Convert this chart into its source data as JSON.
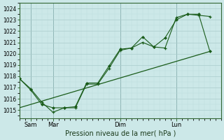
{
  "title": "Pression niveau de la mer( hPa )",
  "ylabel_vals": [
    1015,
    1016,
    1017,
    1018,
    1019,
    1020,
    1021,
    1022,
    1023,
    1024
  ],
  "ylim": [
    1014.3,
    1024.5
  ],
  "xlim": [
    0.0,
    9.0
  ],
  "xtick_positions": [
    0.5,
    1.5,
    4.5,
    7.0
  ],
  "xtick_labels": [
    "Sam",
    "Mar",
    "Dim",
    "Lun"
  ],
  "vline_positions": [
    0.5,
    1.5,
    4.5,
    7.0
  ],
  "background_color": "#cce8e8",
  "grid_color_major": "#aacccc",
  "grid_color_minor": "#bbdddd",
  "line_color": "#1a5c1a",
  "series1_x": [
    0.0,
    0.5,
    1.0,
    1.5,
    2.0,
    2.5,
    3.0,
    3.5,
    4.0,
    4.5,
    5.0,
    5.5,
    6.0,
    6.5,
    7.0,
    7.5,
    8.0,
    8.5
  ],
  "series1_y": [
    1017.8,
    1016.9,
    1015.7,
    1014.8,
    1015.2,
    1015.2,
    1017.3,
    1017.3,
    1018.7,
    1020.3,
    1020.5,
    1021.0,
    1020.6,
    1020.5,
    1023.2,
    1023.5,
    1023.4,
    1023.3
  ],
  "series2_x": [
    0.0,
    0.5,
    1.0,
    1.5,
    2.0,
    2.5,
    3.0,
    3.5,
    4.0,
    4.5,
    5.0,
    5.5,
    6.0,
    6.5,
    7.0,
    7.5,
    8.0,
    8.5
  ],
  "series2_y": [
    1017.8,
    1016.8,
    1015.5,
    1015.2,
    1015.2,
    1015.3,
    1017.4,
    1017.4,
    1018.9,
    1020.4,
    1020.5,
    1021.5,
    1020.6,
    1021.4,
    1023.0,
    1023.5,
    1023.5,
    1020.2
  ],
  "series3_x": [
    0.0,
    8.5
  ],
  "series3_y": [
    1015.2,
    1020.2
  ]
}
